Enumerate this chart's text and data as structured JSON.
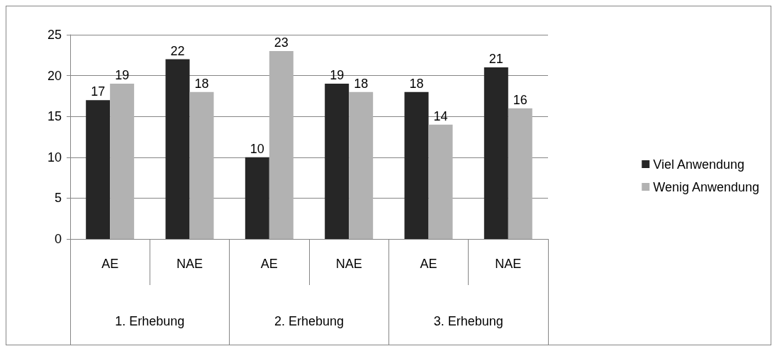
{
  "chart_data": {
    "type": "bar",
    "categories": [
      "AE",
      "NAE",
      "AE",
      "NAE",
      "AE",
      "NAE"
    ],
    "annotations": [
      "1. Erhebung",
      "2. Erhebung",
      "3. Erhebung"
    ],
    "series": [
      {
        "name": "Viel Anwendung",
        "color": "#262626",
        "values": [
          17,
          22,
          10,
          19,
          18,
          21
        ]
      },
      {
        "name": "Wenig Anwendung",
        "color": "#b2b2b2",
        "values": [
          19,
          18,
          23,
          18,
          14,
          16
        ]
      }
    ],
    "ylim": [
      0,
      25
    ],
    "yticks": [
      0,
      5,
      10,
      15,
      20,
      25
    ],
    "grid": "y",
    "legend": "right",
    "data_labels": true
  }
}
